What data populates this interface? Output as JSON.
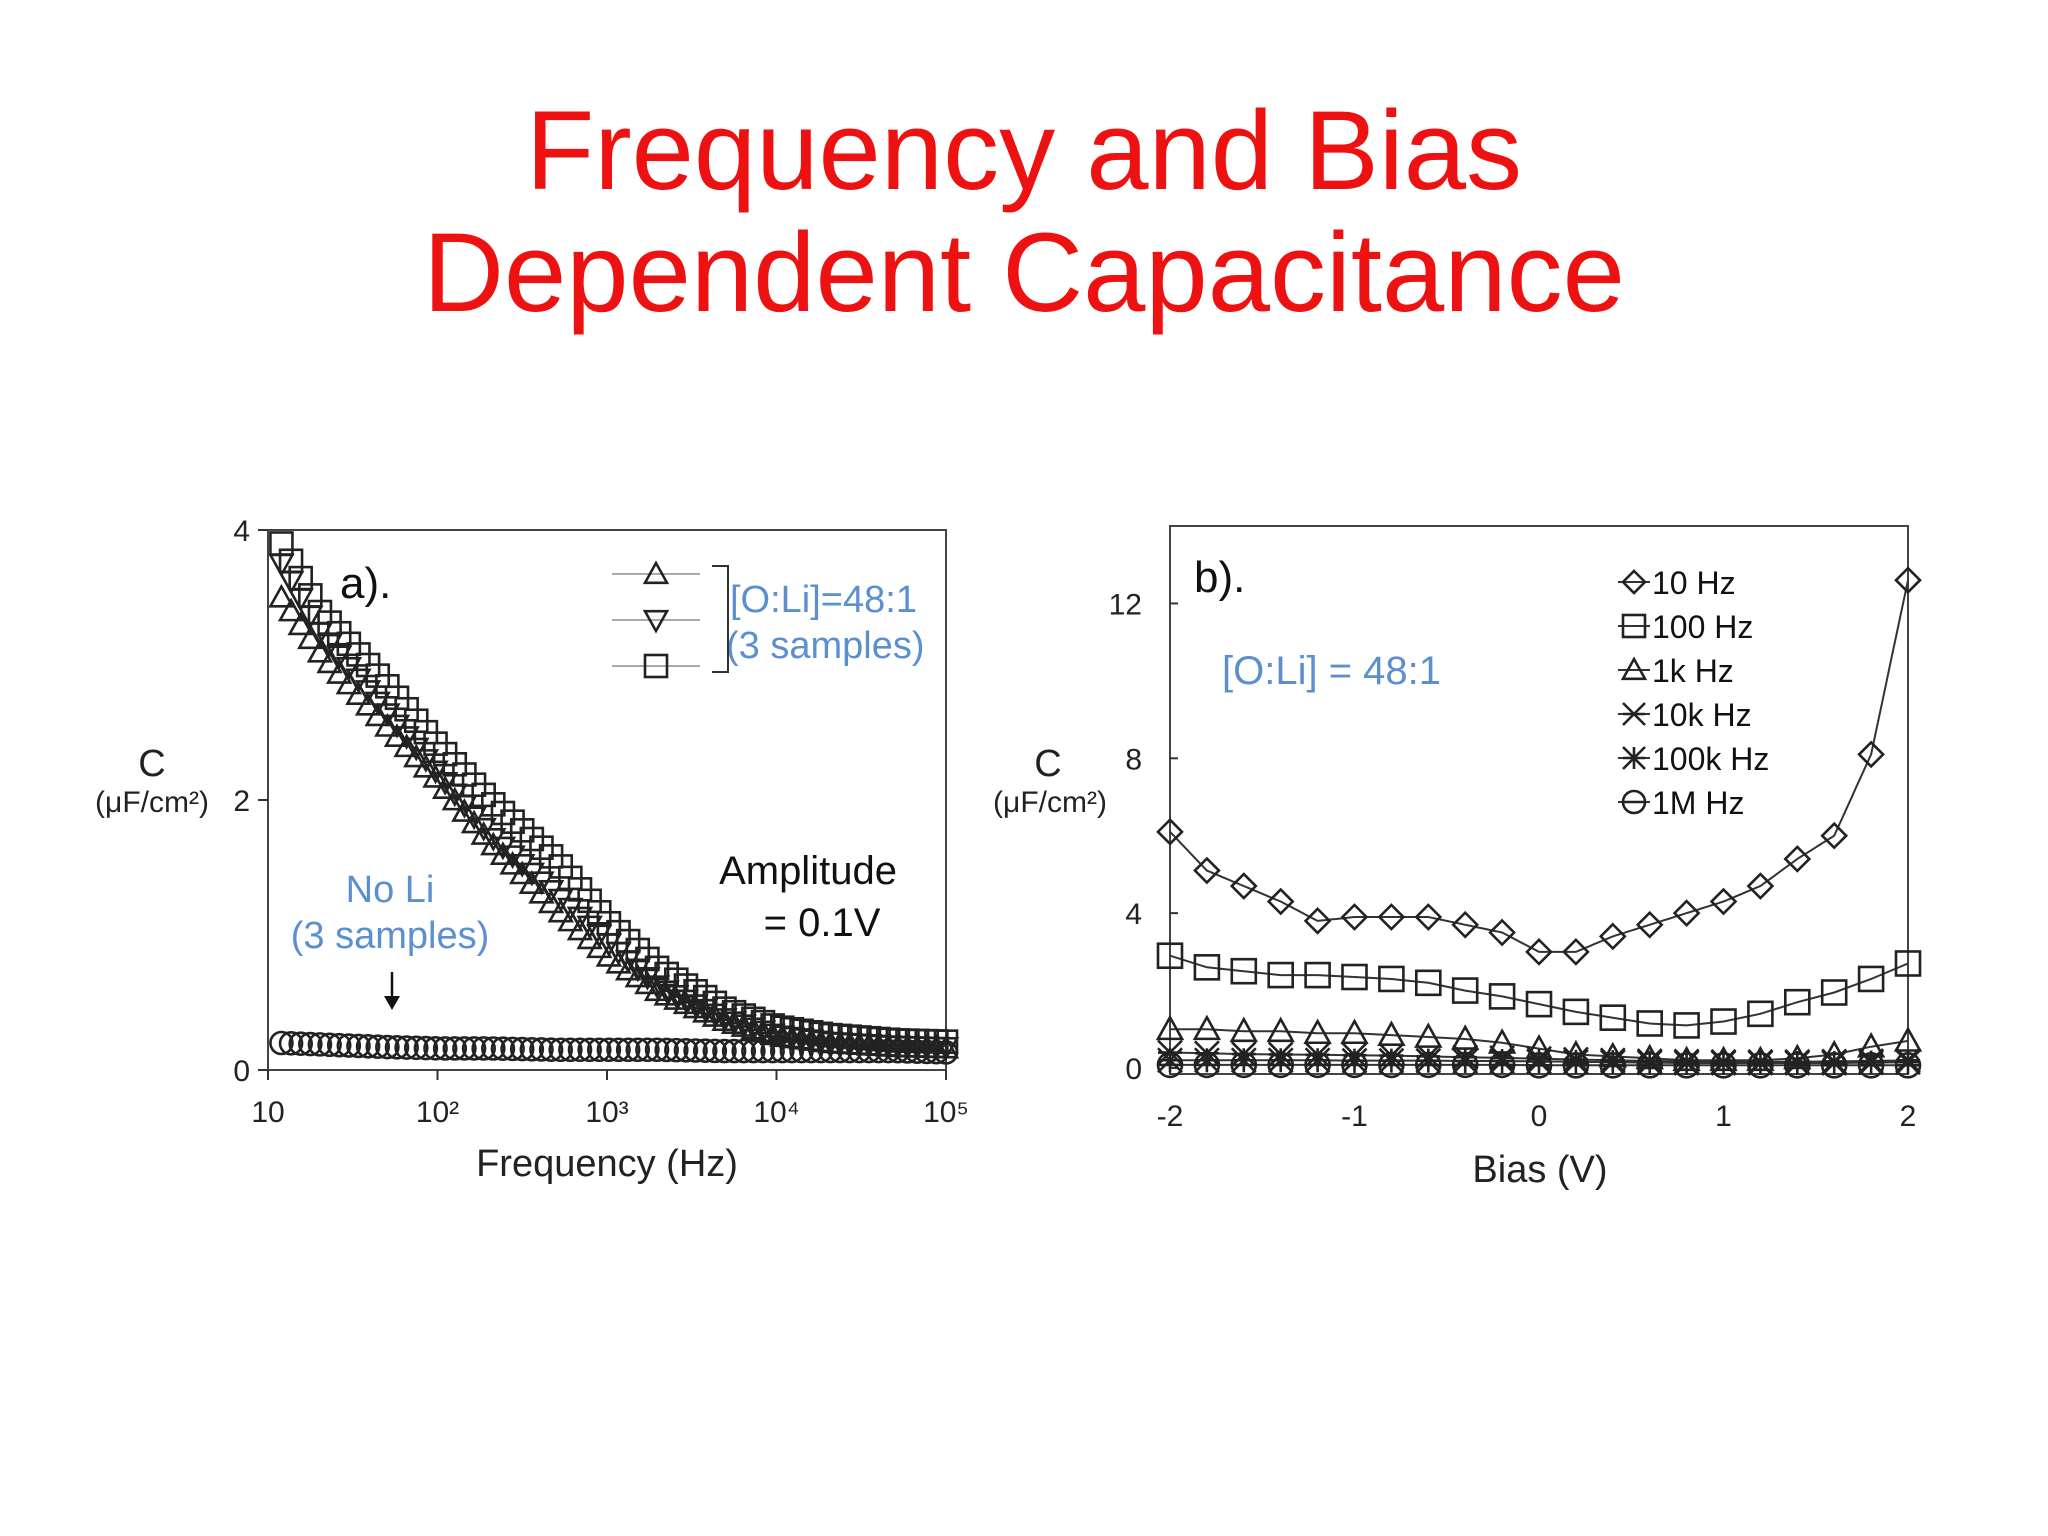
{
  "slide": {
    "title_line1": "Frequency and Bias",
    "title_line2": "Dependent Capacitance",
    "title_color": "#ee1111",
    "annotation_color": "#5b8fd0"
  },
  "chart_data": [
    {
      "type": "scatter",
      "panel_label": "a).",
      "xlabel": "Frequency (Hz)",
      "ylabel": "C",
      "ylabel_unit": "(μF/cm²)",
      "xscale": "log",
      "xlim": [
        10,
        100000
      ],
      "ylim": [
        0,
        4
      ],
      "xticks": [
        "10",
        "10²",
        "10³",
        "10⁴",
        "10⁵"
      ],
      "yticks": [
        "0",
        "2",
        "4"
      ],
      "legend_bracket_text": [
        "[O:Li]=48:1",
        "(3 samples)"
      ],
      "legend_markers": [
        "triangle-up",
        "triangle-down",
        "square"
      ],
      "annotation_noli": [
        "No Li",
        "(3 samples)"
      ],
      "annotation_amplitude": [
        "Amplitude",
        "= 0.1V"
      ],
      "series": [
        {
          "marker": "triangle-up",
          "x": [
            12,
            20,
            50,
            100,
            200,
            500,
            1000,
            2000,
            5000,
            10000,
            20000,
            50000,
            100000
          ],
          "y": [
            3.5,
            3.1,
            2.55,
            2.15,
            1.7,
            1.2,
            0.85,
            0.58,
            0.36,
            0.25,
            0.2,
            0.17,
            0.16
          ]
        },
        {
          "marker": "triangle-down",
          "x": [
            12,
            20,
            50,
            100,
            200,
            500,
            1000,
            2000,
            5000,
            10000,
            20000,
            50000,
            100000
          ],
          "y": [
            3.75,
            3.25,
            2.65,
            2.2,
            1.75,
            1.3,
            0.95,
            0.62,
            0.38,
            0.26,
            0.21,
            0.18,
            0.17
          ]
        },
        {
          "marker": "square",
          "x": [
            12,
            20,
            50,
            100,
            200,
            500,
            1000,
            2000,
            5000,
            10000,
            20000,
            50000,
            100000
          ],
          "y": [
            3.9,
            3.4,
            2.85,
            2.4,
            2.0,
            1.55,
            1.1,
            0.75,
            0.45,
            0.32,
            0.26,
            0.22,
            0.21
          ]
        },
        {
          "marker": "circle",
          "x": [
            12,
            20,
            50,
            100,
            200,
            500,
            1000,
            2000,
            5000,
            10000,
            20000,
            50000,
            100000
          ],
          "y": [
            0.2,
            0.19,
            0.17,
            0.16,
            0.16,
            0.15,
            0.15,
            0.15,
            0.14,
            0.14,
            0.14,
            0.14,
            0.13
          ]
        }
      ]
    },
    {
      "type": "line",
      "panel_label": "b).",
      "xlabel": "Bias (V)",
      "ylabel": "C",
      "ylabel_unit": "(μF/cm²)",
      "xlim": [
        -2,
        2
      ],
      "ylim": [
        0,
        14
      ],
      "xticks": [
        "-2",
        "-1",
        "0",
        "1",
        "2"
      ],
      "yticks": [
        "0",
        "4",
        "8",
        "12"
      ],
      "annotation": "[O:Li] = 48:1",
      "x": [
        -2.0,
        -1.8,
        -1.6,
        -1.4,
        -1.2,
        -1.0,
        -0.8,
        -0.6,
        -0.4,
        -0.2,
        0.0,
        0.2,
        0.4,
        0.6,
        0.8,
        1.0,
        1.2,
        1.4,
        1.6,
        1.8,
        2.0
      ],
      "series": [
        {
          "name": "10 Hz",
          "marker": "diamond",
          "values": [
            6.1,
            5.1,
            4.7,
            4.3,
            3.8,
            3.9,
            3.9,
            3.9,
            3.7,
            3.5,
            3.0,
            3.0,
            3.4,
            3.7,
            4.0,
            4.3,
            4.7,
            5.4,
            6.0,
            8.1,
            12.6
          ]
        },
        {
          "name": "100 Hz",
          "marker": "square",
          "values": [
            2.9,
            2.6,
            2.5,
            2.4,
            2.4,
            2.35,
            2.3,
            2.2,
            2.0,
            1.85,
            1.65,
            1.45,
            1.3,
            1.15,
            1.1,
            1.2,
            1.4,
            1.7,
            1.95,
            2.3,
            2.7
          ]
        },
        {
          "name": "1k Hz",
          "marker": "triangle-up",
          "values": [
            1.0,
            1.0,
            0.95,
            0.95,
            0.9,
            0.9,
            0.85,
            0.8,
            0.75,
            0.65,
            0.5,
            0.35,
            0.3,
            0.25,
            0.2,
            0.2,
            0.2,
            0.25,
            0.35,
            0.55,
            0.7
          ]
        },
        {
          "name": "10k Hz",
          "marker": "x-cross",
          "values": [
            0.4,
            0.38,
            0.36,
            0.35,
            0.34,
            0.33,
            0.32,
            0.3,
            0.28,
            0.26,
            0.24,
            0.22,
            0.2,
            0.18,
            0.17,
            0.16,
            0.16,
            0.16,
            0.17,
            0.18,
            0.2
          ]
        },
        {
          "name": "100k Hz",
          "marker": "asterisk",
          "values": [
            0.2,
            0.2,
            0.2,
            0.2,
            0.2,
            0.19,
            0.19,
            0.19,
            0.18,
            0.18,
            0.17,
            0.16,
            0.15,
            0.14,
            0.13,
            0.13,
            0.13,
            0.13,
            0.13,
            0.14,
            0.15
          ]
        },
        {
          "name": "1M Hz",
          "marker": "circle-bar",
          "values": [
            0.08,
            0.08,
            0.08,
            0.08,
            0.08,
            0.08,
            0.08,
            0.08,
            0.08,
            0.08,
            0.07,
            0.07,
            0.07,
            0.07,
            0.07,
            0.07,
            0.07,
            0.07,
            0.07,
            0.07,
            0.07
          ]
        }
      ]
    }
  ]
}
